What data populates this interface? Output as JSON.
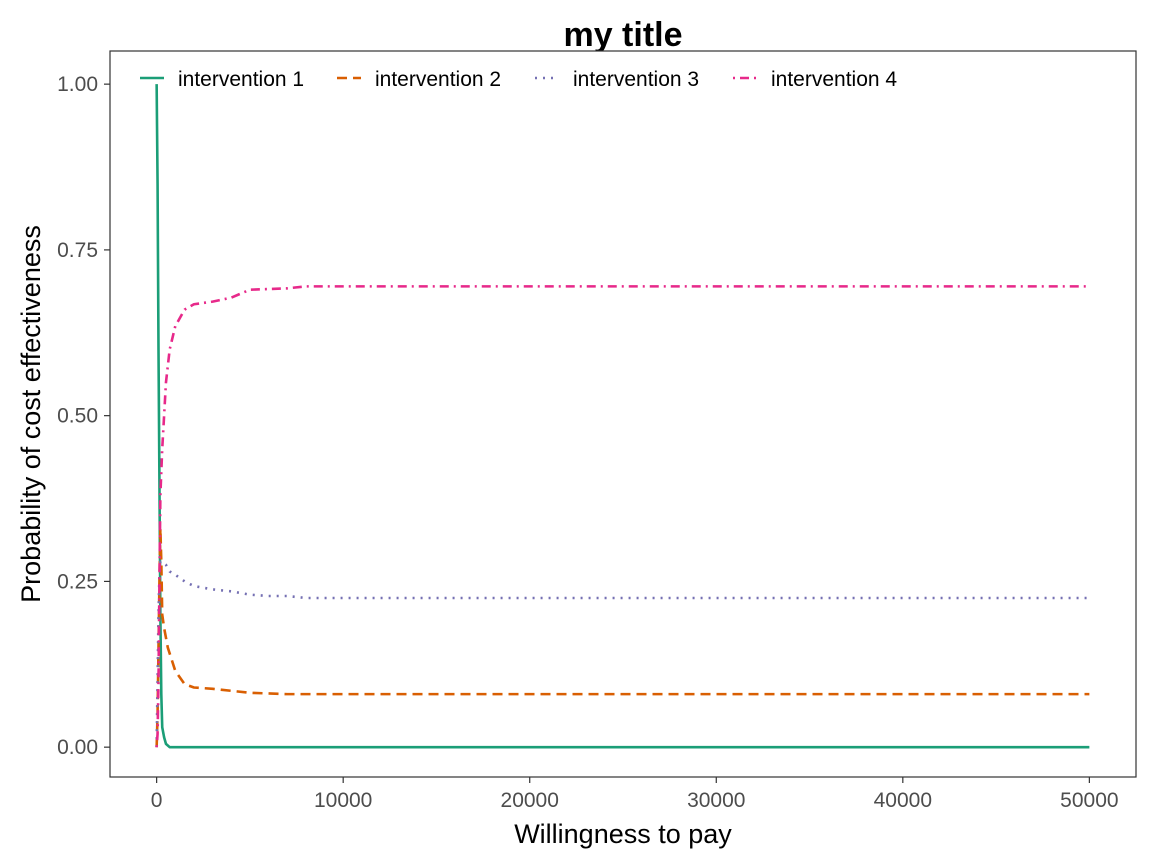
{
  "chart_data": {
    "type": "line",
    "title": "my title",
    "xlabel": "Willingness to pay",
    "ylabel": "Probability of cost effectiveness",
    "xlim": [
      -2500,
      52500
    ],
    "ylim": [
      -0.045,
      1.05
    ],
    "xticks": [
      0,
      10000,
      20000,
      30000,
      40000,
      50000
    ],
    "xtick_labels": [
      "0",
      "10000",
      "20000",
      "30000",
      "40000",
      "50000"
    ],
    "yticks": [
      0,
      0.25,
      0.5,
      0.75,
      1
    ],
    "ytick_labels": [
      "0.00",
      "0.25",
      "0.50",
      "0.75",
      "1.00"
    ],
    "grid": false,
    "legend_position": "top-left, inside",
    "series": [
      {
        "name": "intervention 1",
        "color": "#1b9e77",
        "dash": "solid",
        "points": [
          [
            0,
            1.0
          ],
          [
            50,
            0.85
          ],
          [
            100,
            0.6
          ],
          [
            150,
            0.4
          ],
          [
            200,
            0.2
          ],
          [
            250,
            0.08
          ],
          [
            300,
            0.03
          ],
          [
            400,
            0.015
          ],
          [
            500,
            0.005
          ],
          [
            700,
            0.0
          ],
          [
            1000,
            0.0
          ],
          [
            5000,
            0.0
          ],
          [
            10000,
            0.0
          ],
          [
            20000,
            0.0
          ],
          [
            30000,
            0.0
          ],
          [
            40000,
            0.0
          ],
          [
            50000,
            0.0
          ]
        ]
      },
      {
        "name": "intervention 2",
        "color": "#d95f02",
        "dash": "dashed",
        "points": [
          [
            0,
            0.0
          ],
          [
            50,
            0.05
          ],
          [
            100,
            0.15
          ],
          [
            150,
            0.25
          ],
          [
            200,
            0.33
          ],
          [
            250,
            0.28
          ],
          [
            300,
            0.2
          ],
          [
            400,
            0.18
          ],
          [
            600,
            0.15
          ],
          [
            1000,
            0.115
          ],
          [
            1500,
            0.095
          ],
          [
            2000,
            0.09
          ],
          [
            3000,
            0.088
          ],
          [
            4000,
            0.085
          ],
          [
            5000,
            0.082
          ],
          [
            7000,
            0.08
          ],
          [
            10000,
            0.08
          ],
          [
            20000,
            0.08
          ],
          [
            30000,
            0.08
          ],
          [
            40000,
            0.08
          ],
          [
            50000,
            0.08
          ]
        ]
      },
      {
        "name": "intervention 3",
        "color": "#7570b3",
        "dash": "dotted",
        "points": [
          [
            0,
            0.0
          ],
          [
            50,
            0.1
          ],
          [
            100,
            0.2
          ],
          [
            150,
            0.26
          ],
          [
            200,
            0.28
          ],
          [
            300,
            0.28
          ],
          [
            500,
            0.275
          ],
          [
            700,
            0.265
          ],
          [
            1000,
            0.26
          ],
          [
            1500,
            0.25
          ],
          [
            2000,
            0.243
          ],
          [
            3000,
            0.238
          ],
          [
            4000,
            0.235
          ],
          [
            5000,
            0.23
          ],
          [
            6000,
            0.228
          ],
          [
            7000,
            0.228
          ],
          [
            8000,
            0.225
          ],
          [
            10000,
            0.225
          ],
          [
            20000,
            0.225
          ],
          [
            30000,
            0.225
          ],
          [
            40000,
            0.225
          ],
          [
            50000,
            0.225
          ]
        ]
      },
      {
        "name": "intervention 4",
        "color": "#e7298a",
        "dash": "dotdash",
        "points": [
          [
            0,
            0.0
          ],
          [
            50,
            0.02
          ],
          [
            100,
            0.1
          ],
          [
            150,
            0.25
          ],
          [
            200,
            0.38
          ],
          [
            300,
            0.45
          ],
          [
            400,
            0.5
          ],
          [
            500,
            0.55
          ],
          [
            700,
            0.6
          ],
          [
            1000,
            0.635
          ],
          [
            1500,
            0.66
          ],
          [
            2000,
            0.668
          ],
          [
            3000,
            0.672
          ],
          [
            4000,
            0.678
          ],
          [
            5000,
            0.69
          ],
          [
            7000,
            0.692
          ],
          [
            8000,
            0.695
          ],
          [
            10000,
            0.695
          ],
          [
            20000,
            0.695
          ],
          [
            30000,
            0.695
          ],
          [
            40000,
            0.695
          ],
          [
            50000,
            0.695
          ]
        ]
      }
    ]
  }
}
